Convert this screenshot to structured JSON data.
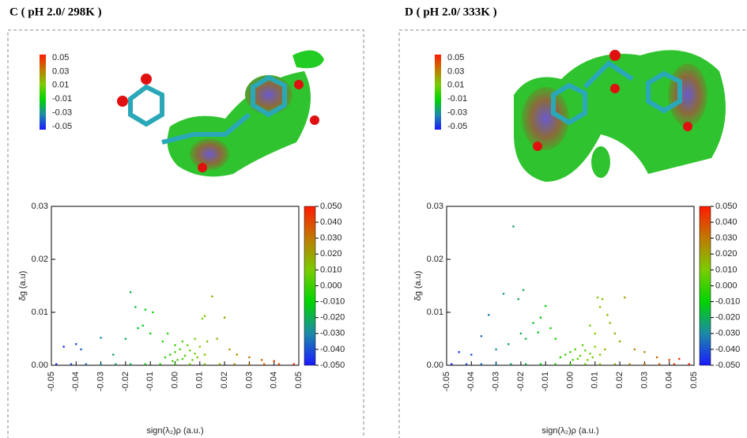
{
  "chart_data": [
    {
      "type": "scatter",
      "title": "C ( pH 2.0/ 298K )",
      "xlabel": "sign(λ₂)ρ (a.u.)",
      "ylabel": "δg (a.u)",
      "xlim": [
        -0.05,
        0.05
      ],
      "ylim": [
        0,
        0.03
      ],
      "xticks": [
        -0.05,
        -0.04,
        -0.03,
        -0.02,
        -0.01,
        {
          "value": 0,
          "label": "0.00"
        },
        0.01,
        0.02,
        0.03,
        0.04,
        0.05
      ],
      "yticks": [
        {
          "value": 0,
          "label": "0.00"
        },
        0.01,
        0.02,
        0.03
      ],
      "clim": [
        -0.05,
        0.05
      ],
      "cticks": [
        {
          "value": 0.05,
          "label": "0.050"
        },
        {
          "value": 0.04,
          "label": "0.040"
        },
        {
          "value": 0.03,
          "label": "0.030"
        },
        {
          "value": 0.02,
          "label": "0.020"
        },
        {
          "value": 0.01,
          "label": "0.010"
        },
        {
          "value": 0,
          "label": "0.000"
        },
        {
          "value": -0.01,
          "label": "-0.010"
        },
        {
          "value": -0.02,
          "label": "-0.020"
        },
        {
          "value": -0.03,
          "label": "-0.030"
        },
        {
          "value": -0.04,
          "label": "-0.040"
        },
        {
          "value": -0.05,
          "label": "-0.050"
        }
      ],
      "legend_ticks": [
        0.05,
        0.03,
        0.01,
        -0.01,
        -0.03,
        -0.05
      ],
      "colormap": [
        "#1a1aff",
        "#1c8aa8",
        "#00d400",
        "#7acc00",
        "#c07a00",
        "#ff1a00"
      ],
      "x": [
        -0.048,
        -0.042,
        -0.036,
        -0.03,
        -0.024,
        -0.018,
        -0.012,
        -0.006,
        0.0,
        0.006,
        0.012,
        0.018,
        0.024,
        0.03,
        0.036,
        0.042,
        0.048,
        -0.004,
        -0.002,
        0.0,
        0.002,
        0.004,
        0.006,
        0.008,
        0.01,
        0.001,
        0.003,
        -0.001,
        0.007,
        0.009,
        0.012,
        0.005,
        -0.018,
        -0.016,
        -0.012,
        -0.009,
        -0.003,
        0.015,
        0.012,
        0.011,
        0.02,
        -0.045,
        -0.04,
        -0.038,
        -0.03,
        -0.025,
        -0.02,
        -0.015,
        -0.013,
        -0.01,
        -0.005,
        0.0,
        0.003,
        0.008,
        0.013,
        0.017,
        0.022,
        0.025,
        0.03,
        0.035,
        0.04
      ],
      "values": [
        0.0002,
        0.0002,
        0.0002,
        0.0002,
        0.0002,
        0.0002,
        0.0002,
        0.0002,
        0.0002,
        0.0002,
        0.0002,
        0.0002,
        0.0002,
        0.0002,
        0.0002,
        0.0002,
        0.0002,
        0.0015,
        0.002,
        0.0025,
        0.003,
        0.0018,
        0.0028,
        0.0022,
        0.0035,
        0.001,
        0.0012,
        0.0008,
        0.001,
        0.0015,
        0.002,
        0.0038,
        0.0138,
        0.011,
        0.0105,
        0.01,
        0.006,
        0.013,
        0.0093,
        0.0088,
        0.009,
        0.0035,
        0.004,
        0.003,
        0.0052,
        0.002,
        0.005,
        0.007,
        0.0075,
        0.006,
        0.0045,
        0.0038,
        0.0045,
        0.005,
        0.0045,
        0.005,
        0.003,
        0.002,
        0.0015,
        0.001,
        0.0008
      ]
    },
    {
      "type": "scatter",
      "title": "D ( pH 2.0/ 333K )",
      "xlabel": "sign(λ₂)ρ (a.u.)",
      "ylabel": "δg (a.u)",
      "xlim": [
        -0.05,
        0.05
      ],
      "ylim": [
        0,
        0.03
      ],
      "xticks": [
        -0.05,
        -0.04,
        -0.03,
        -0.02,
        -0.01,
        {
          "value": 0,
          "label": "0.00"
        },
        0.01,
        0.02,
        0.03,
        0.04,
        0.05
      ],
      "yticks": [
        {
          "value": 0,
          "label": "0.00"
        },
        0.01,
        0.02,
        0.03
      ],
      "clim": [
        -0.05,
        0.05
      ],
      "cticks": [
        {
          "value": 0.05,
          "label": "0.050"
        },
        {
          "value": 0.04,
          "label": "0.040"
        },
        {
          "value": 0.03,
          "label": "0.030"
        },
        {
          "value": 0.02,
          "label": "0.020"
        },
        {
          "value": 0.01,
          "label": "0.010"
        },
        {
          "value": 0,
          "label": "0.000"
        },
        {
          "value": -0.01,
          "label": "-0.010"
        },
        {
          "value": -0.02,
          "label": "-0.020"
        },
        {
          "value": -0.03,
          "label": "-0.030"
        },
        {
          "value": -0.04,
          "label": "-0.040"
        },
        {
          "value": -0.05,
          "label": "-0.050"
        }
      ],
      "legend_ticks": [
        0.05,
        0.03,
        0.01,
        -0.01,
        -0.03,
        -0.05
      ],
      "colormap": [
        "#1a1aff",
        "#1c8aa8",
        "#00d400",
        "#7acc00",
        "#c07a00",
        "#ff1a00"
      ],
      "x": [
        -0.048,
        -0.042,
        -0.036,
        -0.03,
        -0.024,
        -0.018,
        -0.012,
        -0.006,
        0.0,
        0.006,
        0.012,
        0.018,
        0.024,
        0.03,
        0.036,
        0.042,
        0.048,
        -0.004,
        -0.002,
        0.0,
        0.002,
        0.004,
        0.006,
        0.008,
        0.01,
        0.001,
        0.003,
        0.007,
        0.009,
        0.012,
        0.005,
        0.014,
        -0.023,
        -0.027,
        -0.019,
        -0.021,
        -0.01,
        -0.033,
        -0.036,
        0.011,
        0.013,
        0.022,
        0.012,
        0.015,
        0.016,
        -0.012,
        -0.015,
        -0.008,
        -0.02,
        -0.018,
        -0.025,
        -0.03,
        -0.04,
        -0.045,
        -0.013,
        -0.006,
        0.018,
        0.02,
        0.026,
        0.03,
        0.035,
        0.04,
        0.044,
        0.01,
        0.008
      ],
      "values": [
        0.0002,
        0.0002,
        0.0002,
        0.0002,
        0.0002,
        0.0002,
        0.0002,
        0.0002,
        0.0002,
        0.0002,
        0.0002,
        0.0002,
        0.0002,
        0.0002,
        0.0002,
        0.0002,
        0.0002,
        0.0015,
        0.002,
        0.0025,
        0.003,
        0.0018,
        0.0028,
        0.0022,
        0.0035,
        0.001,
        0.0012,
        0.001,
        0.0015,
        0.002,
        0.0038,
        0.003,
        0.0262,
        0.0135,
        0.0142,
        0.0125,
        0.0112,
        0.0095,
        0.0055,
        0.0128,
        0.0125,
        0.0128,
        0.011,
        0.0095,
        0.008,
        0.009,
        0.008,
        0.007,
        0.006,
        0.005,
        0.004,
        0.003,
        0.002,
        0.0025,
        0.0062,
        0.005,
        0.006,
        0.0045,
        0.003,
        0.0025,
        0.0015,
        0.001,
        0.0012,
        0.006,
        0.0075
      ]
    }
  ]
}
